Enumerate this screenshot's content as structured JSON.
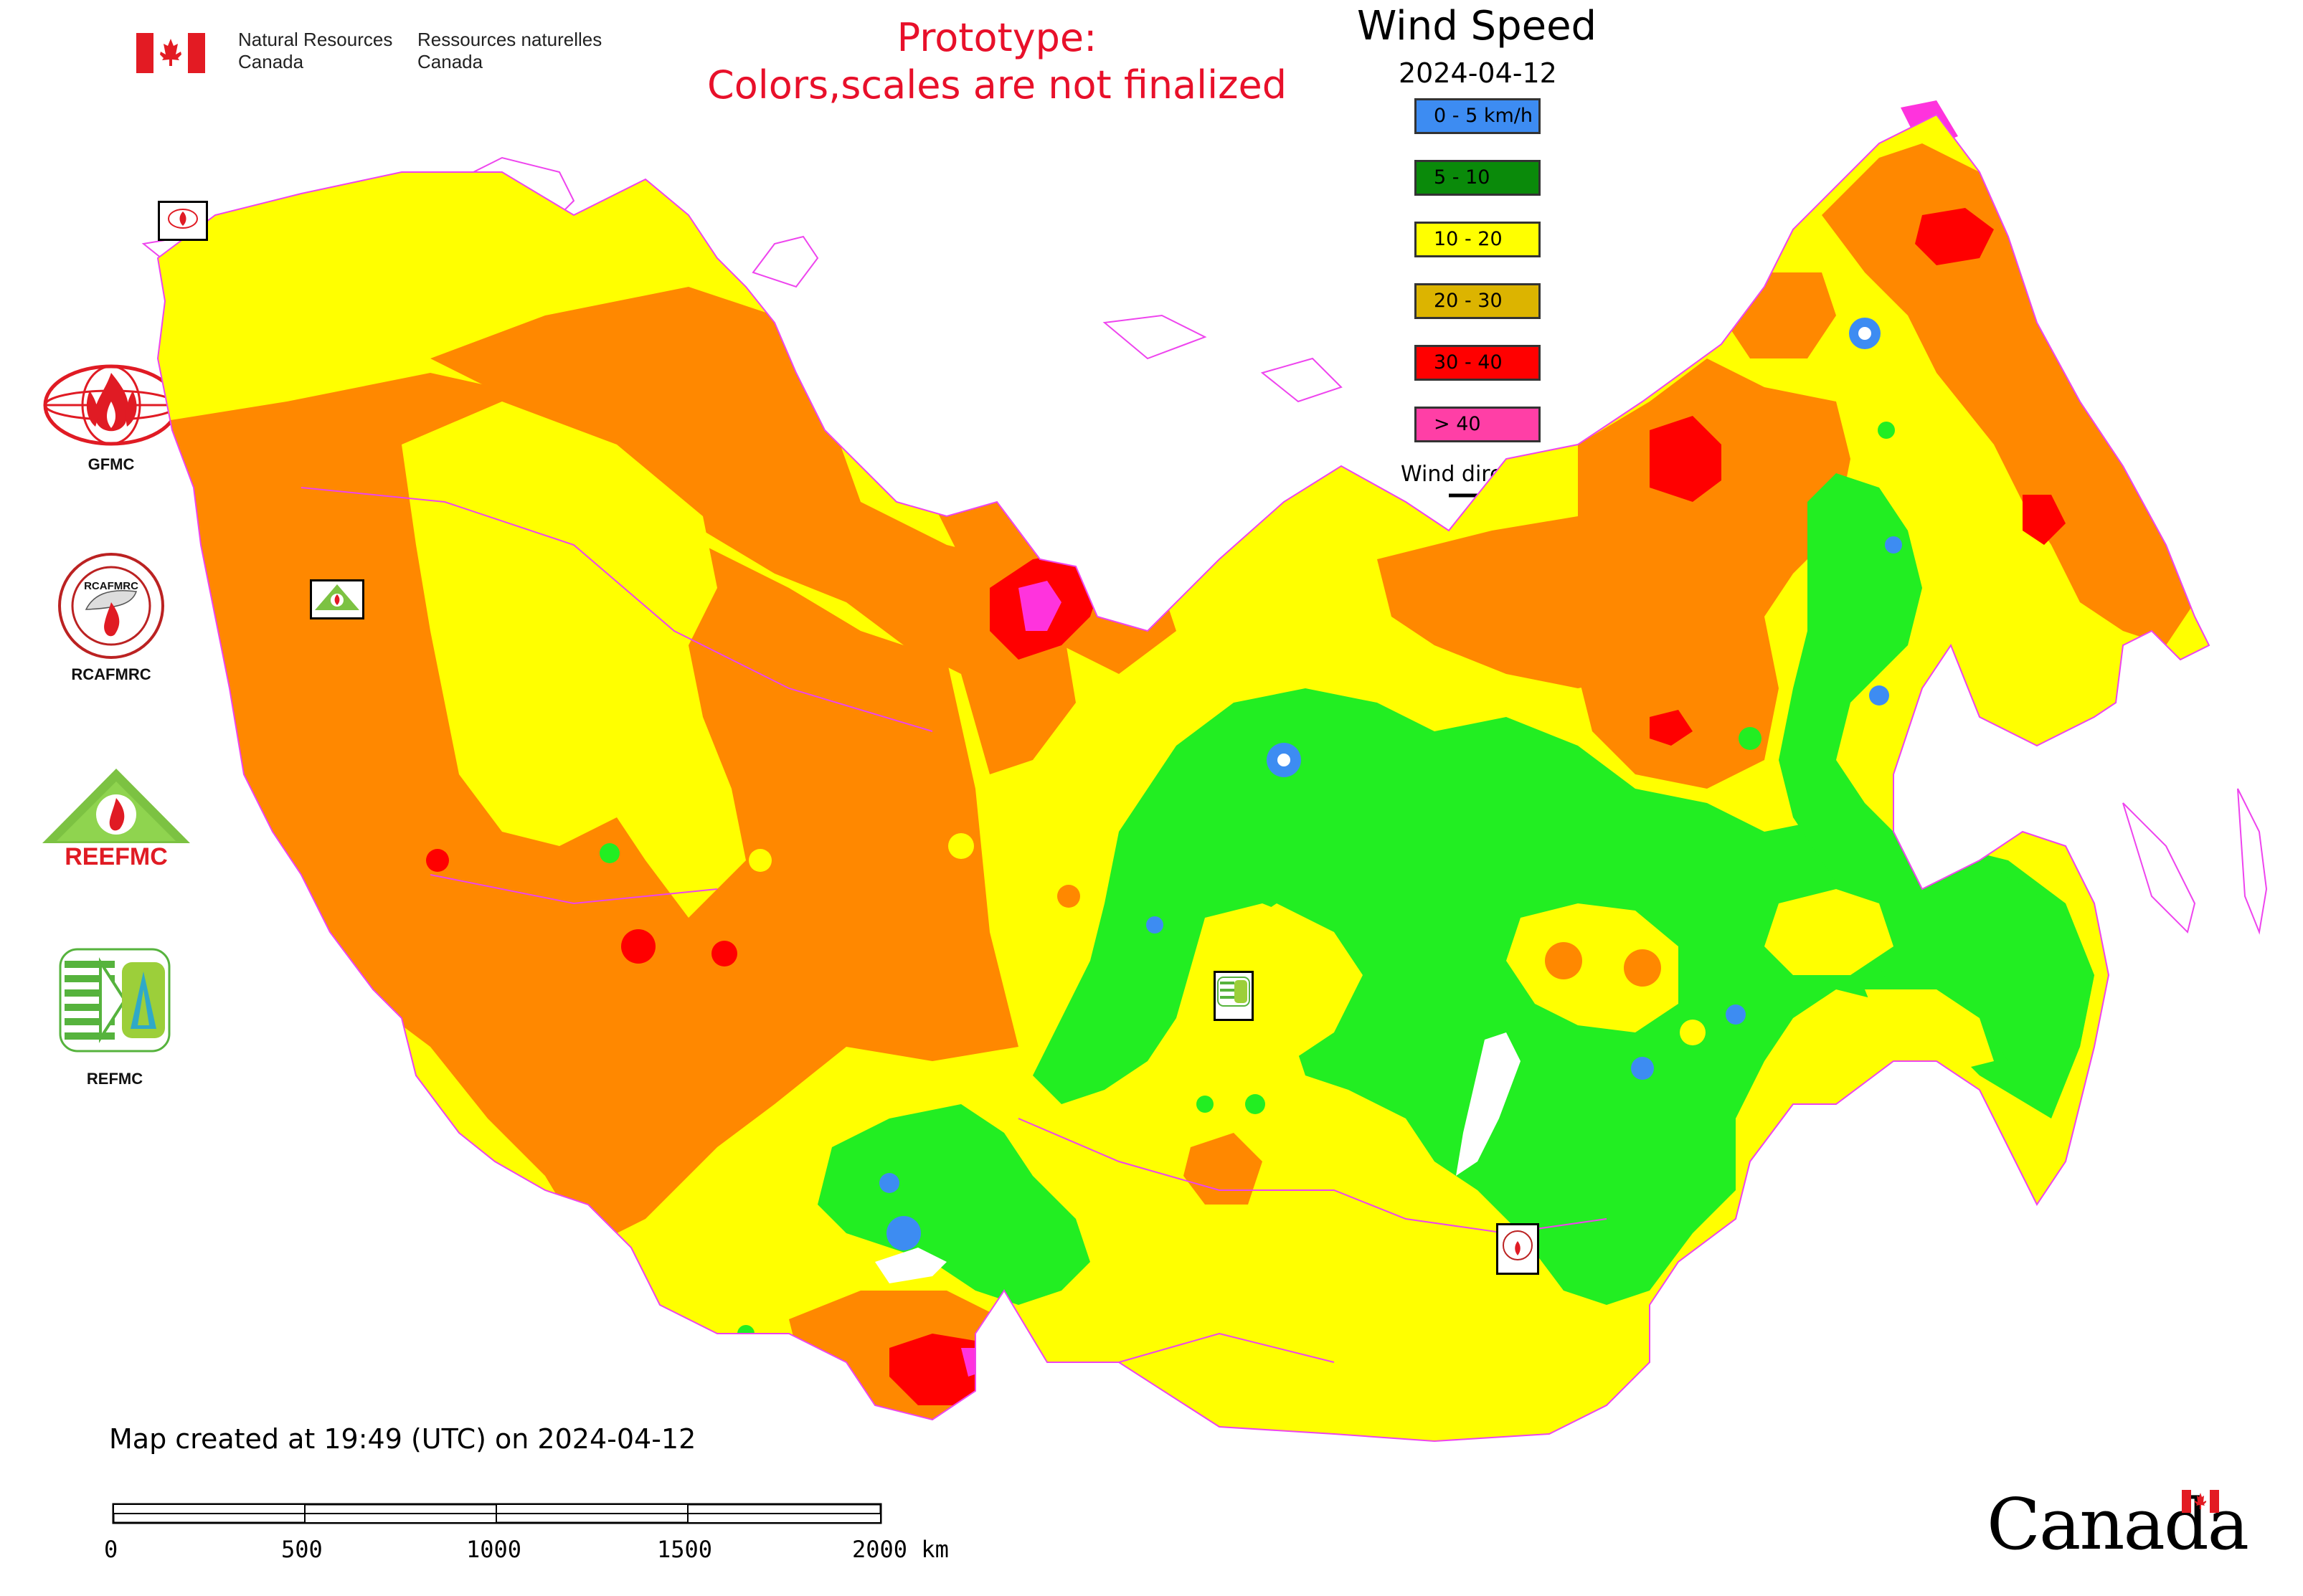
{
  "header": {
    "nrc_en_line1": "Natural Resources",
    "nrc_en_line2": "Canada",
    "nrc_fr_line1": "Ressources naturelles",
    "nrc_fr_line2": "Canada",
    "prototype_line1": "Prototype:",
    "prototype_line2": "Colors,scales are not finalized"
  },
  "legend": {
    "title": "Wind Speed",
    "date": "2024-04-12",
    "classes": [
      {
        "label": "0 - 5 km/h",
        "color": "#3d8cf2"
      },
      {
        "label": "5 - 10",
        "color": "#0a8a0a"
      },
      {
        "label": "10 - 20",
        "color": "#ffff00"
      },
      {
        "label": "20 - 30",
        "color": "#dcb400"
      },
      {
        "label": "30 - 40",
        "color": "#ff0000"
      },
      {
        "label": "> 40",
        "color": "#ff3fa6"
      }
    ],
    "wind_direction_label": "Wind direction"
  },
  "centers": {
    "gfmc": "GFMC",
    "rcafmrc": "RCAFMRC",
    "reefmc": "REEFMC",
    "refmc": "REFMC",
    "rcafmrc_seal_top": "RCAFMRC"
  },
  "map_colors": {
    "calm": "#3d8cf2",
    "light": "#22ee22",
    "moderate": "#ffff00",
    "fresh": "#ff8800",
    "strong": "#ff0000",
    "gale": "#ff33dd",
    "border": "#ee44ee"
  },
  "footer": {
    "created": "Map created at 19:49 (UTC) on 2024-04-12",
    "scale_ticks": [
      "0",
      "500",
      "1000",
      "1500",
      "2000 km"
    ],
    "wordmark": "Canada"
  }
}
